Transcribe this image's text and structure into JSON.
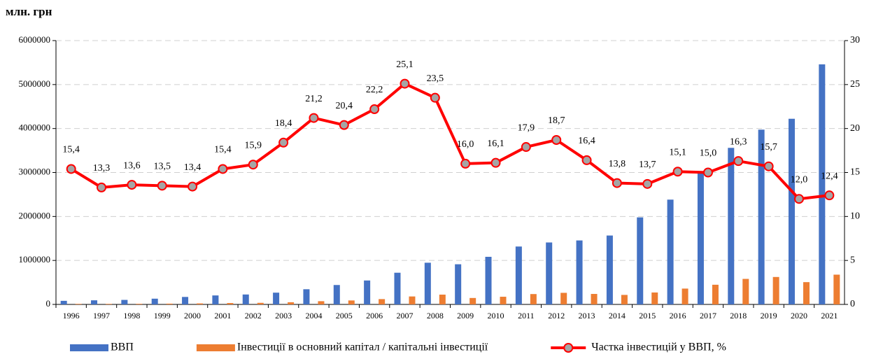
{
  "chart_data": {
    "type": "bar",
    "y_unit_label": "млн. грн",
    "categories": [
      "1996",
      "1997",
      "1998",
      "1999",
      "2000",
      "2001",
      "2002",
      "2003",
      "2004",
      "2005",
      "2006",
      "2007",
      "2008",
      "2009",
      "2010",
      "2011",
      "2012",
      "2013",
      "2014",
      "2015",
      "2016",
      "2017",
      "2018",
      "2019",
      "2020",
      "2021"
    ],
    "series": [
      {
        "name": "ВВП",
        "type": "bar",
        "color": "#4472c4",
        "values": [
          81519,
          93365,
          102593,
          130442,
          170070,
          204190,
          225810,
          267344,
          345113,
          441452,
          544153,
          720731,
          948056,
          913345,
          1082569,
          1316600,
          1408889,
          1454931,
          1566728,
          1979458,
          2383182,
          2982920,
          3560596,
          3974564,
          4222026,
          5459574
        ]
      },
      {
        "name": "Інвестиції в основний капітал / капітальні інвестиції",
        "type": "bar",
        "color": "#ed7d31",
        "values": [
          12554,
          12418,
          13953,
          17610,
          22789,
          31445,
          35904,
          49191,
          73164,
          90056,
          120802,
          180903,
          222793,
          146135,
          174294,
          235671,
          263462,
          238609,
          216208,
          271186,
          359854,
          447438,
          580377,
          624006,
          506643,
          677000
        ]
      },
      {
        "name": "Частка інвестицій у ВВП, %",
        "type": "line",
        "axis": "y2",
        "color": "#ff0000",
        "marker_color": "#a5a5a5",
        "values": [
          15.4,
          13.3,
          13.6,
          13.5,
          13.4,
          15.4,
          15.9,
          18.4,
          21.2,
          20.4,
          22.2,
          25.1,
          23.5,
          16.0,
          16.1,
          17.9,
          18.7,
          16.4,
          13.8,
          13.7,
          15.1,
          15.0,
          16.3,
          15.7,
          12.0,
          12.4
        ],
        "value_labels": [
          "15,4",
          "13,3",
          "13,6",
          "13,5",
          "13,4",
          "15,4",
          "15,9",
          "18,4",
          "21,2",
          "20,4",
          "22,2",
          "25,1",
          "23,5",
          "16,0",
          "16,1",
          "17,9",
          "18,7",
          "16,4",
          "13,8",
          "13,7",
          "15,1",
          "15,0",
          "16,3",
          "15,7",
          "12,0",
          "12,4"
        ]
      }
    ],
    "ylim": [
      0,
      6000000
    ],
    "yticks": [
      0,
      1000000,
      2000000,
      3000000,
      4000000,
      5000000,
      6000000
    ],
    "y2lim": [
      0,
      30
    ],
    "y2ticks": [
      0,
      5,
      10,
      15,
      20,
      25,
      30
    ],
    "grid": true,
    "legend": "bottom"
  }
}
